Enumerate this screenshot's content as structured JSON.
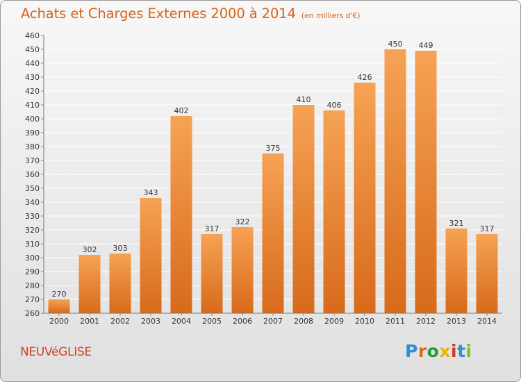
{
  "header": {
    "title": "Achats et Charges Externes 2000 à 2014",
    "subtitle": "(en milliers d'€)"
  },
  "footer": {
    "commune": "NEUVéGLISE",
    "logo": {
      "text": "Proxiti",
      "letters": [
        {
          "ch": "P",
          "color": "#2f8fd8"
        },
        {
          "ch": "r",
          "color": "#e0661a"
        },
        {
          "ch": "o",
          "color": "#1f9b3a"
        },
        {
          "ch": "x",
          "color": "#e8b400"
        },
        {
          "ch": "i",
          "color": "#d43a2a"
        },
        {
          "ch": "t",
          "color": "#2f8fd8"
        },
        {
          "ch": "i",
          "color": "#7fbf1f"
        }
      ]
    }
  },
  "colors": {
    "bar_light": "#f6a254",
    "bar_dark": "#d86a1b",
    "text": "#333333",
    "grid": "#ffffff",
    "title": "#d6651a"
  },
  "chart_data": {
    "type": "bar",
    "categories": [
      "2000",
      "2001",
      "2002",
      "2003",
      "2004",
      "2005",
      "2006",
      "2007",
      "2008",
      "2009",
      "2010",
      "2011",
      "2012",
      "2013",
      "2014"
    ],
    "values": [
      270,
      302,
      303,
      343,
      402,
      317,
      322,
      375,
      410,
      406,
      426,
      450,
      449,
      321,
      317
    ],
    "ylim": [
      260,
      460
    ],
    "yticks": [
      260,
      270,
      280,
      290,
      300,
      310,
      320,
      330,
      340,
      350,
      360,
      370,
      380,
      390,
      400,
      410,
      420,
      430,
      440,
      450,
      460
    ],
    "grid": true,
    "data_labels": true,
    "xlabel": "",
    "ylabel": ""
  }
}
